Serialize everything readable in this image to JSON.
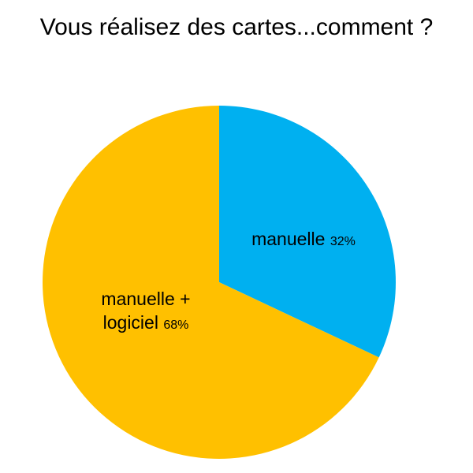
{
  "chart_data": {
    "type": "pie",
    "title": "Vous réalisez des cartes...comment ?",
    "categories": [
      "manuelle",
      "manuelle + logiciel"
    ],
    "values": [
      32,
      68
    ],
    "value_labels": [
      "32%",
      "68%"
    ],
    "colors": [
      "#00b0f0",
      "#ffc000"
    ]
  }
}
